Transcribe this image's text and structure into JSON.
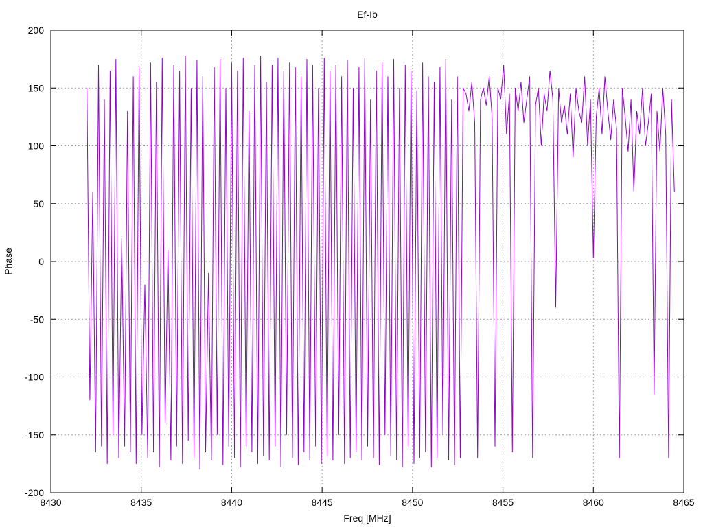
{
  "chart_data": {
    "type": "line",
    "title": "Ef-Ib",
    "xlabel": "Freq [MHz]",
    "ylabel": "Phase",
    "xlim": [
      8430,
      8465
    ],
    "ylim": [
      -200,
      200
    ],
    "xticks": [
      8430,
      8435,
      8440,
      8445,
      8450,
      8455,
      8460,
      8465
    ],
    "yticks": [
      200,
      150,
      100,
      50,
      0,
      -50,
      -100,
      -150,
      -200
    ],
    "grid": true,
    "color": "#9400d3",
    "series": [
      {
        "name": "Ef-Ib",
        "x_start": 8432.0,
        "x_step": 0.16,
        "values": [
          150,
          -120,
          60,
          -165,
          170,
          -160,
          140,
          -175,
          165,
          -150,
          175,
          -170,
          20,
          -160,
          130,
          -165,
          160,
          -175,
          168,
          -150,
          -20,
          -170,
          172,
          -165,
          155,
          -178,
          176,
          -140,
          10,
          -172,
          170,
          -160,
          165,
          -175,
          178,
          -155,
          150,
          -170,
          174,
          -180,
          160,
          -165,
          -10,
          -172,
          168,
          -150,
          175,
          -176,
          150,
          -160,
          172,
          -170,
          165,
          -178,
          176,
          -160,
          130,
          -165,
          170,
          -175,
          178,
          -168,
          155,
          -172,
          170,
          -160,
          176,
          -178,
          165,
          -150,
          172,
          -170,
          168,
          -176,
          160,
          -165,
          175,
          -172,
          170,
          -160,
          150,
          -175,
          176,
          -168,
          165,
          -172,
          170,
          -150,
          160,
          -175,
          174,
          -170,
          150,
          -165,
          168,
          -172,
          176,
          -160,
          140,
          -170,
          165,
          -176,
          172,
          -150,
          160,
          -168,
          175,
          -172,
          150,
          -178,
          170,
          -160,
          165,
          -175,
          148,
          -170,
          172,
          -165,
          160,
          -178,
          155,
          -170,
          168,
          -150,
          175,
          -172,
          140,
          -176,
          160,
          -170,
          150,
          145,
          130,
          155,
          120,
          -170,
          140,
          150,
          135,
          160,
          125,
          -160,
          150,
          140,
          170,
          110,
          145,
          -165,
          150,
          130,
          155,
          120,
          140,
          160,
          -170,
          135,
          150,
          100,
          145,
          130,
          165,
          140,
          -40,
          150,
          120,
          135,
          110,
          145,
          90,
          150,
          130,
          120,
          160,
          100,
          140,
          3,
          125,
          150,
          110,
          160,
          130,
          105,
          140,
          115,
          -170,
          150,
          125,
          95,
          140,
          60,
          130,
          110,
          150,
          100,
          120,
          145,
          -115,
          130,
          95,
          150,
          110,
          -170,
          140,
          60
        ]
      }
    ]
  }
}
